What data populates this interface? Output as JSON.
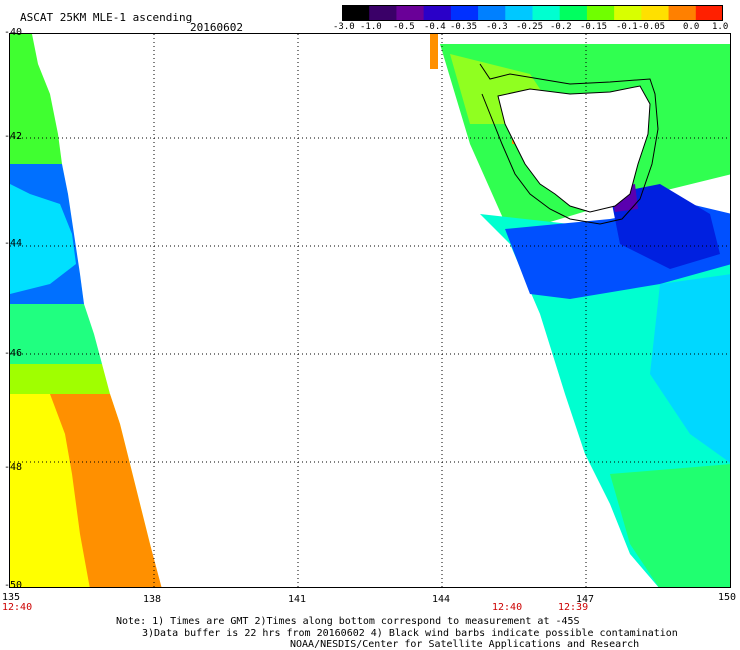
{
  "header": {
    "title": "ASCAT 25KM MLE-1 ascending",
    "date": "20160602"
  },
  "colorbar": {
    "labels": [
      "-3.0",
      "-1.0",
      "-0.5",
      "-0.4",
      "-0.35",
      "-0.3",
      "-0.25",
      "-0.2",
      "-0.15",
      "-0.1",
      "-0.05",
      "0.0",
      "1.0"
    ],
    "colors": [
      "#000000",
      "#3a0068",
      "#6a0098",
      "#2a00c8",
      "#0030ff",
      "#0080ff",
      "#00c8ff",
      "#00ffd0",
      "#00ff60",
      "#70ff00",
      "#d8ff00",
      "#ffe000",
      "#ff8000",
      "#ff2000"
    ]
  },
  "axes": {
    "lat_labels": [
      "-40",
      "-42",
      "-44",
      "-46",
      "-48",
      "-50"
    ],
    "lon_labels": [
      "135",
      "138",
      "141",
      "144",
      "147",
      "150"
    ]
  },
  "times": {
    "left": "12:40",
    "mid": "12:40",
    "right": "12:39"
  },
  "notes": {
    "line1": "Note: 1) Times are GMT 2)Times along bottom correspond to measurement at -45S",
    "line2": "3)Data buffer is 22 hrs from 20160602 4) Black wind barbs indicate possible contamination",
    "line3": "NOAA/NESDIS/Center for Satellite Applications and Research"
  },
  "palette": {
    "purple": "#5a00b0",
    "blue": "#0020ff",
    "blue2": "#0060ff",
    "cyan": "#00e0ff",
    "aqua": "#00ffc8",
    "green": "#30ff40",
    "lime": "#a0ff00",
    "yellow": "#ffff00",
    "orange": "#ff8c00"
  }
}
